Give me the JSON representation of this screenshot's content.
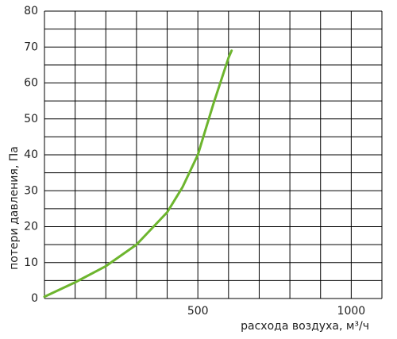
{
  "chart_data": {
    "type": "line",
    "x_label": "расхода воздуха, м³/ч",
    "y_label": "потери давления, Па",
    "x": [
      0,
      100,
      200,
      300,
      400,
      450,
      500,
      550,
      600,
      610
    ],
    "series": [
      {
        "color": "#6db52e",
        "values": [
          0.5,
          4.5,
          9,
          15,
          24,
          31,
          40,
          54,
          67,
          69
        ]
      }
    ],
    "xlim": [
      0,
      1100
    ],
    "ylim": [
      0,
      80
    ],
    "xticks": [
      500,
      1000
    ],
    "yticks": [
      0,
      10,
      20,
      30,
      40,
      50,
      60,
      70,
      80
    ],
    "xgrid": [
      0,
      100,
      200,
      300,
      400,
      500,
      600,
      700,
      800,
      900,
      1000,
      1100
    ],
    "ygrid": [
      0,
      5,
      10,
      15,
      20,
      25,
      30,
      35,
      40,
      45,
      50,
      55,
      60,
      65,
      70,
      75,
      80
    ]
  }
}
